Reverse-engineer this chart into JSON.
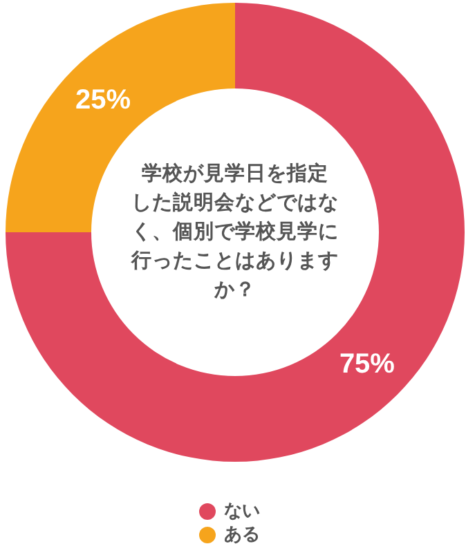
{
  "chart_data": {
    "type": "donut",
    "title": "学校が見学日を指定した説明会などではなく、個別で学校見学に行ったことはありますか？",
    "categories": [
      "ない",
      "ある"
    ],
    "values": [
      75,
      25
    ],
    "colors": [
      "#e0485e",
      "#f6a41c"
    ],
    "value_labels": [
      "75%",
      "25%"
    ],
    "legend": "bottom"
  }
}
